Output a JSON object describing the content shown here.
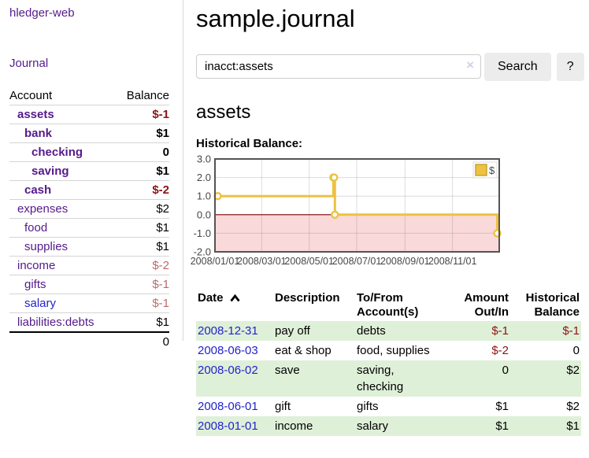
{
  "app": {
    "brand": "hledger-web",
    "nav_journal": "Journal"
  },
  "colors": {
    "link_purple": "#551a8b",
    "link_blue": "#2323cc",
    "negative_strong": "#8b1414",
    "negative_soft": "#bd6a6a",
    "row_green": "#dff0d8",
    "series_gold": "#edc240",
    "negative_region_pink": "#f9d9d9",
    "zero_line_red": "#800000",
    "button_gray": "#ececec"
  },
  "sidebar": {
    "accounts_header": {
      "account": "Account",
      "balance": "Balance"
    },
    "accounts": [
      {
        "name": "assets",
        "depth": 1,
        "bold": true,
        "balance": "$-1",
        "negative": true,
        "blue": false
      },
      {
        "name": "bank",
        "depth": 2,
        "bold": true,
        "balance": "$1",
        "negative": false,
        "blue": false
      },
      {
        "name": "checking",
        "depth": 3,
        "bold": true,
        "balance": "0",
        "negative": false,
        "blue": false
      },
      {
        "name": "saving",
        "depth": 3,
        "bold": true,
        "balance": "$1",
        "negative": false,
        "blue": false
      },
      {
        "name": "cash",
        "depth": 2,
        "bold": true,
        "balance": "$-2",
        "negative": true,
        "blue": false
      },
      {
        "name": "expenses",
        "depth": 1,
        "bold": false,
        "balance": "$2",
        "negative": false,
        "blue": false
      },
      {
        "name": "food",
        "depth": 2,
        "bold": false,
        "balance": "$1",
        "negative": false,
        "blue": false
      },
      {
        "name": "supplies",
        "depth": 2,
        "bold": false,
        "balance": "$1",
        "negative": false,
        "blue": false
      },
      {
        "name": "income",
        "depth": 1,
        "bold": false,
        "balance": "$-2",
        "negative": true,
        "blue": false
      },
      {
        "name": "gifts",
        "depth": 2,
        "bold": false,
        "balance": "$-1",
        "negative": true,
        "blue": false
      },
      {
        "name": "salary",
        "depth": 2,
        "bold": false,
        "balance": "$-1",
        "negative": true,
        "blue": true
      },
      {
        "name": "liabilities:debts",
        "depth": 1,
        "bold": false,
        "balance": "$1",
        "negative": false,
        "blue": false
      }
    ],
    "total": "0"
  },
  "header": {
    "title": "sample.journal"
  },
  "search": {
    "value": "inacct:assets",
    "clear_icon": "×",
    "button": "Search",
    "help_button": "?"
  },
  "account_page": {
    "title": "assets",
    "chart_label": "Historical Balance:"
  },
  "chart_data": {
    "type": "line",
    "title": "Historical Balance:",
    "step": true,
    "legend": "$",
    "legend_position": "top-right",
    "grid": true,
    "x_range": [
      "2008-01-01",
      "2008-12-31"
    ],
    "ylim": [
      -2,
      3
    ],
    "x_ticks": [
      "2008/01/01",
      "2008/03/01",
      "2008/05/01",
      "2008/07/01",
      "2008/09/01",
      "2008/11/01"
    ],
    "y_ticks": [
      "3.0",
      "2.0",
      "1.0",
      "0.0",
      "-1.0",
      "-2.0"
    ],
    "series": [
      {
        "name": "$",
        "points": [
          {
            "date": "2008-01-01",
            "value": 1
          },
          {
            "date": "2008-06-01",
            "value": 2
          },
          {
            "date": "2008-06-02",
            "value": 2
          },
          {
            "date": "2008-06-03",
            "value": 0
          },
          {
            "date": "2008-12-31",
            "value": -1
          }
        ]
      }
    ]
  },
  "register": {
    "columns": [
      {
        "key": "date",
        "line1": "Date",
        "line2": "",
        "align": "left",
        "sort": "asc"
      },
      {
        "key": "description",
        "line1": "Description",
        "line2": "",
        "align": "left"
      },
      {
        "key": "accounts",
        "line1": "To/From",
        "line2": "Account(s)",
        "align": "left"
      },
      {
        "key": "amount",
        "line1": "Amount",
        "line2": "Out/In",
        "align": "right"
      },
      {
        "key": "balance",
        "line1": "Historical",
        "line2": "Balance",
        "align": "right"
      }
    ],
    "rows": [
      {
        "date": "2008-12-31",
        "description": "pay off",
        "accounts": "debts",
        "amount": "$-1",
        "amount_negative": true,
        "balance": "$-1",
        "balance_negative": true
      },
      {
        "date": "2008-06-03",
        "description": "eat & shop",
        "accounts": "food, supplies",
        "amount": "$-2",
        "amount_negative": true,
        "balance": "0",
        "balance_negative": false
      },
      {
        "date": "2008-06-02",
        "description": "save",
        "accounts": "saving, checking",
        "amount": "0",
        "amount_negative": false,
        "balance": "$2",
        "balance_negative": false
      },
      {
        "date": "2008-06-01",
        "description": "gift",
        "accounts": "gifts",
        "amount": "$1",
        "amount_negative": false,
        "balance": "$2",
        "balance_negative": false
      },
      {
        "date": "2008-01-01",
        "description": "income",
        "accounts": "salary",
        "amount": "$1",
        "amount_negative": false,
        "balance": "$1",
        "balance_negative": false
      }
    ]
  }
}
